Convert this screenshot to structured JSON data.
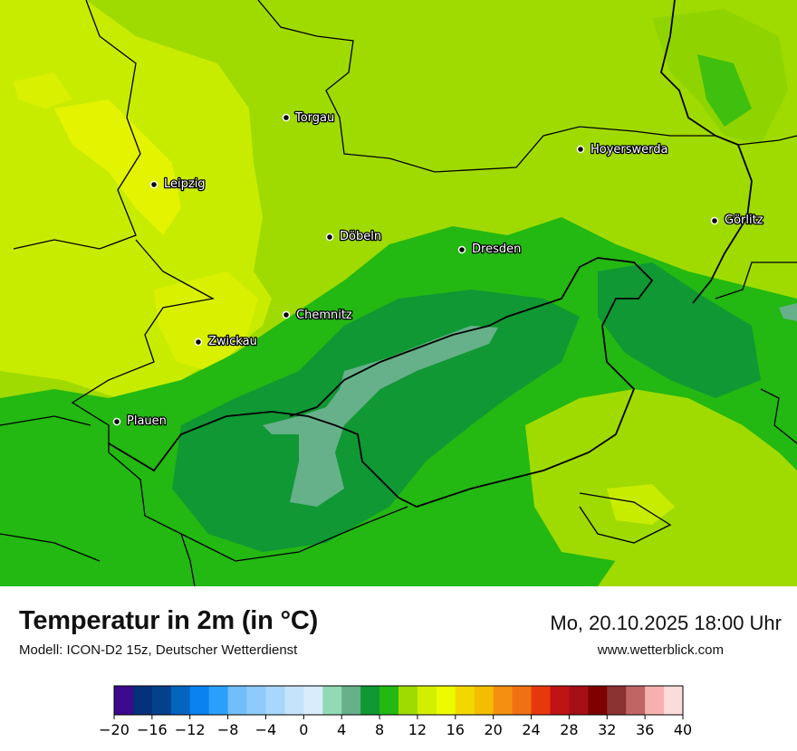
{
  "title": "Temperatur in 2m (in °C)",
  "model_info": "Modell: ICON-D2 15z, Deutscher Wetterdienst",
  "datetime": "Mo, 20.10.2025 18:00 Uhr",
  "website": "www.wetterblick.com",
  "cities": [
    {
      "name": "Torgau"
    },
    {
      "name": "Hoyerswerda"
    },
    {
      "name": "Leipzig"
    },
    {
      "name": "Görlitz"
    },
    {
      "name": "Döbeln"
    },
    {
      "name": "Dresden"
    },
    {
      "name": "Chemnitz"
    },
    {
      "name": "Zwickau"
    },
    {
      "name": "Plauen"
    }
  ],
  "legend": {
    "min": -20,
    "max": 40,
    "step": 2,
    "tick_labels": [
      "−20",
      "−16",
      "−12",
      "−8",
      "−4",
      "0",
      "4",
      "8",
      "12",
      "16",
      "20",
      "24",
      "28",
      "32",
      "36",
      "40"
    ],
    "colors": [
      "#3c0a8c",
      "#05307a",
      "#04418c",
      "#0464be",
      "#0a82f0",
      "#2ba0fa",
      "#73bdfa",
      "#8ecbfa",
      "#a8d6fc",
      "#c6e3fc",
      "#d8ecfc",
      "#92d9b6",
      "#66b08a",
      "#0f9833",
      "#23b812",
      "#9fdb00",
      "#d3ef00",
      "#eefb00",
      "#f2d800",
      "#f4bd00",
      "#f39010",
      "#f07113",
      "#e7380c",
      "#c01313",
      "#a50f16",
      "#7f0000",
      "#8b3232",
      "#c06464",
      "#f6b0ae",
      "#fbdcda"
    ]
  }
}
